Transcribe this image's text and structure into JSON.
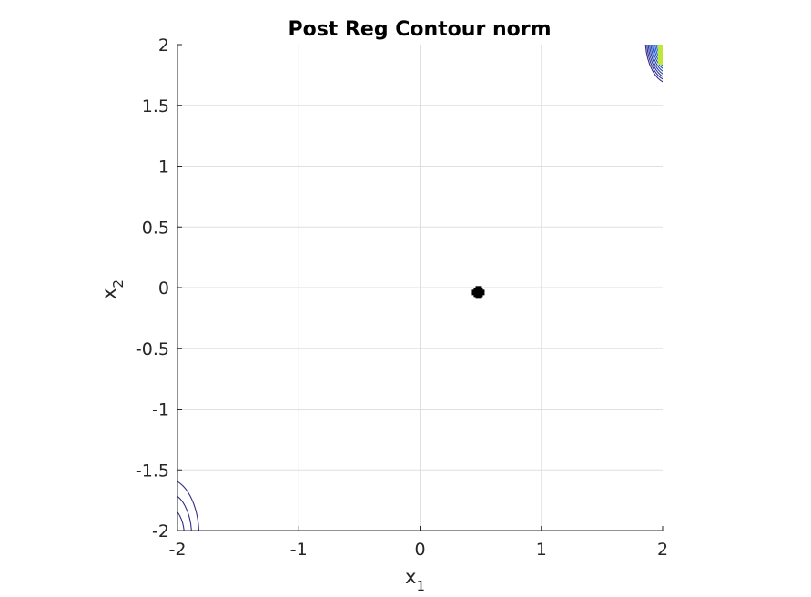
{
  "chart_data": {
    "type": "contour",
    "title": "Post Reg Contour norm",
    "xlabel": {
      "base": "x",
      "sub": "1"
    },
    "ylabel": {
      "base": "x",
      "sub": "2"
    },
    "xlim": [
      -2,
      2
    ],
    "ylim": [
      -2,
      2
    ],
    "xticks": [
      -2,
      -1,
      0,
      1,
      2
    ],
    "yticks": [
      -2,
      -1.5,
      -1,
      -0.5,
      0,
      0.5,
      1,
      1.5,
      2
    ],
    "xtick_labels": [
      "-2",
      "-1",
      "0",
      "1",
      "2"
    ],
    "ytick_labels": [
      "-2",
      "-1.5",
      "-1",
      "-0.5",
      "0",
      "0.5",
      "1",
      "1.5",
      "2"
    ],
    "grid": true,
    "colormap": "parula",
    "marker": {
      "x": 0.48,
      "y": -0.04,
      "symbol": "filled-plus",
      "color": "#000000"
    },
    "contour_regions": [
      {
        "name": "top-right corner",
        "center": [
          2.05,
          2.05
        ],
        "radii": [
          0.35,
          0.33,
          0.31,
          0.29,
          0.27,
          0.25,
          0.23,
          0.21,
          0.19,
          0.17,
          0.15,
          0.13,
          0.11
        ]
      },
      {
        "name": "bottom-left corner",
        "center": [
          -2.07,
          -2.05
        ],
        "radii": [
          0.45,
          0.34,
          0.23,
          0.12
        ]
      }
    ],
    "colors": {
      "low": "#352a87",
      "mid": "#0f5cdd",
      "high": "#33b7a0",
      "top": "#f9fb0e"
    }
  }
}
